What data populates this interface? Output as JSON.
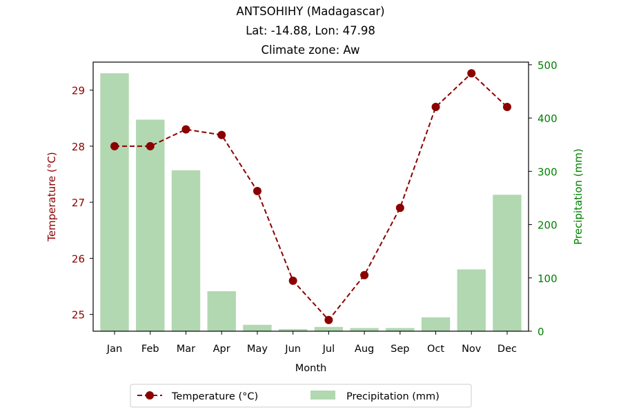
{
  "chart_data": {
    "type": "bar+line",
    "title_lines": [
      "ANTSOHIHY (Madagascar)",
      "Lat: -14.88, Lon: 47.98",
      "Climate zone: Aw"
    ],
    "xlabel": "Month",
    "ylabel_left": "Temperature (°C)",
    "ylabel_right": "Precipitation (mm)",
    "categories": [
      "Jan",
      "Feb",
      "Mar",
      "Apr",
      "May",
      "Jun",
      "Jul",
      "Aug",
      "Sep",
      "Oct",
      "Nov",
      "Dec"
    ],
    "temperature": {
      "name": "Temperature (°C)",
      "color": "#8b0000",
      "values": [
        28.0,
        28.0,
        28.3,
        28.2,
        27.2,
        25.6,
        24.9,
        25.7,
        26.9,
        28.7,
        29.3,
        28.7
      ]
    },
    "precipitation": {
      "name": "Precipitation (mm)",
      "color": "#b1d8b1",
      "values": [
        484,
        397,
        302,
        75,
        12,
        4,
        8,
        6,
        6,
        26,
        116,
        256
      ]
    },
    "ylim_left": [
      24.7,
      29.5
    ],
    "ylim_right": [
      0,
      505
    ],
    "yticks_left": [
      25,
      26,
      27,
      28,
      29
    ],
    "yticks_right": [
      0,
      100,
      200,
      300,
      400,
      500
    ],
    "left_axis_color": "#8b0000",
    "right_axis_color": "#008000",
    "grid": false,
    "legend_position": "bottom-center"
  }
}
